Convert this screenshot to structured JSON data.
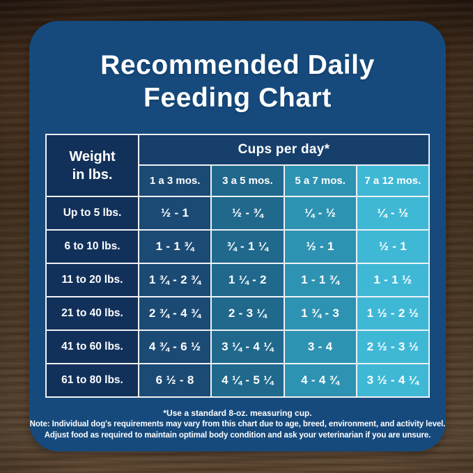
{
  "card": {
    "title_line1": "Recommended Daily",
    "title_line2": "Feeding Chart"
  },
  "table": {
    "weight_header_line1": "Weight",
    "weight_header_line2": "in lbs.",
    "cups_header": "Cups per day*",
    "age_columns": [
      "1 a 3 mos.",
      "3 a 5 mos.",
      "5 a 7 mos.",
      "7 a 12 mos."
    ],
    "rows": [
      {
        "weight": "Up to 5 lbs.",
        "values": [
          "½ - 1",
          "½ - ¾",
          "¼ - ½",
          "¼ - ½"
        ]
      },
      {
        "weight": "6 to 10 lbs.",
        "values": [
          "1 - 1 ¾",
          "¾ - 1 ¼",
          "½ - 1",
          "½ - 1"
        ]
      },
      {
        "weight": "11 to 20 lbs.",
        "values": [
          "1 ¾ - 2 ¾",
          "1 ¼ - 2",
          "1 - 1 ¾",
          "1 - 1 ½"
        ]
      },
      {
        "weight": "21 to 40 lbs.",
        "values": [
          "2 ¾ - 4 ¾",
          "2 - 3 ¼",
          "1 ¾ - 3",
          "1 ½ - 2 ½"
        ]
      },
      {
        "weight": "41 to 60 lbs.",
        "values": [
          "4 ¾ - 6 ½",
          "3 ¼ - 4 ¼",
          "3 - 4",
          "2 ½ - 3 ½"
        ]
      },
      {
        "weight": "61 to 80 lbs.",
        "values": [
          "6 ½ - 8",
          "4 ¼ - 5 ¼",
          "4 - 4 ¾",
          "3 ½ - 4 ¼"
        ]
      }
    ]
  },
  "footnotes": {
    "line1": "*Use a standard 8-oz. measuring cup.",
    "line2": "Note: Individual dog's requirements may vary from this chart due to age, breed, environment, and activity level.",
    "line3": "Adjust food as required to maintain optimal body condition and ask your veterinarian if you are unsure."
  },
  "colors": {
    "card_bg": "#164a7d",
    "weight_col": "#12315a",
    "cups_band": "#173f6b",
    "col_1a3": "#1b4a74",
    "col_3a5": "#20688c",
    "col_5a7": "#2e93b2",
    "col_7a12": "#3fb8d6",
    "grid": "#f0f2f5",
    "title_text": "#ffffff"
  },
  "chart_data": {
    "type": "table",
    "title": "Recommended Daily Feeding Chart",
    "group_header": "Cups per day*",
    "columns": [
      "Weight in lbs.",
      "1 a 3 mos.",
      "3 a 5 mos.",
      "5 a 7 mos.",
      "7 a 12 mos."
    ],
    "rows": [
      [
        "Up to 5 lbs.",
        "½ - 1",
        "½ - ¾",
        "¼ - ½",
        "¼ - ½"
      ],
      [
        "6 to 10 lbs.",
        "1 - 1 ¾",
        "¾ - 1 ¼",
        "½ - 1",
        "½ - 1"
      ],
      [
        "11 to 20 lbs.",
        "1 ¾ - 2 ¾",
        "1 ¼ - 2",
        "1 - 1 ¾",
        "1 - 1 ½"
      ],
      [
        "21 to 40 lbs.",
        "2 ¾ - 4 ¾",
        "2 - 3 ¼",
        "1 ¾ - 3",
        "1 ½ - 2 ½"
      ],
      [
        "41 to 60 lbs.",
        "4 ¾ - 6 ½",
        "3 ¼ - 4 ¼",
        "3 - 4",
        "2 ½ - 3 ½"
      ],
      [
        "61 to 80 lbs.",
        "6 ½ - 8",
        "4 ¼ - 5 ¼",
        "4 - 4 ¾",
        "3 ½ - 4 ¼"
      ]
    ],
    "annotations": [
      "*Use a standard 8-oz. measuring cup.",
      "Note: Individual dog's requirements may vary from this chart due to age, breed, environment, and activity level.",
      "Adjust food as required to maintain optimal body condition and ask your veterinarian if you are unsure."
    ],
    "layout_hints": {
      "column_color_gradient": [
        "#1b4a74",
        "#20688c",
        "#2e93b2",
        "#3fb8d6"
      ],
      "grid": true
    }
  }
}
